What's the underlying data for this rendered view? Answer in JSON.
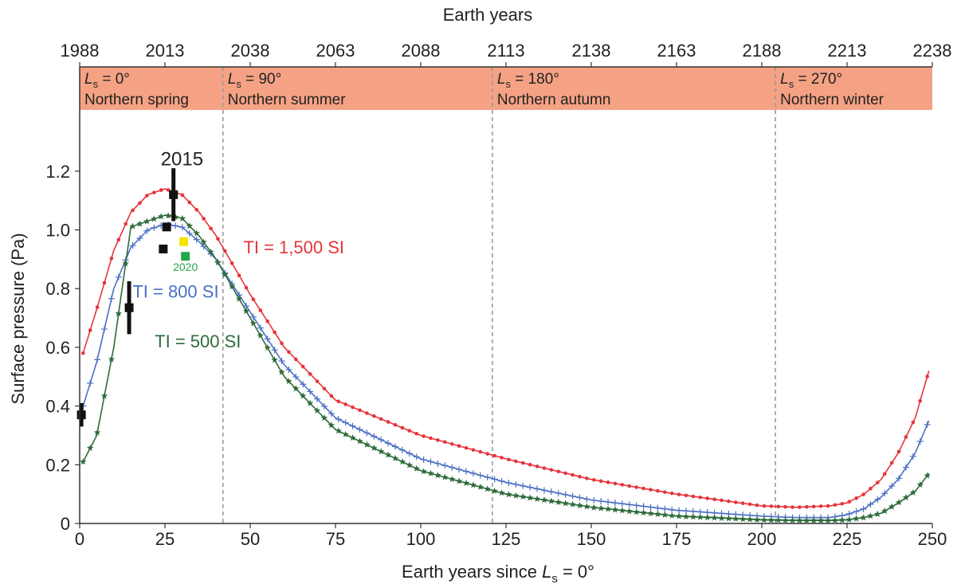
{
  "chart_data": {
    "type": "line",
    "top_axis_title": "Earth years",
    "top_ticks": [
      "1988",
      "2013",
      "2038",
      "2063",
      "2088",
      "2113",
      "2138",
      "2163",
      "2188",
      "2213",
      "2238"
    ],
    "xlabel_main": "Earth years since ",
    "xlabel_L": "L",
    "xlabel_sub": "s",
    "xlabel_tail": " = 0°",
    "ylabel": "Surface pressure (Pa)",
    "xlim": [
      0,
      250
    ],
    "ylim": [
      0,
      1.3
    ],
    "x_ticks": [
      0,
      25,
      50,
      75,
      100,
      125,
      150,
      175,
      200,
      225,
      250
    ],
    "y_ticks": [
      "0",
      "0.2",
      "0.4",
      "0.6",
      "0.8",
      "1.0",
      "1.2"
    ],
    "seasons": [
      {
        "ls": " = 0°",
        "name": "Northern spring",
        "x_start": 0
      },
      {
        "ls": " = 90°",
        "name": "Northern summer",
        "x_start": 42
      },
      {
        "ls": " = 180°",
        "name": "Northern autumn",
        "x_start": 121
      },
      {
        "ls": " = 270°",
        "name": "Northern winter",
        "x_start": 204
      }
    ],
    "season_color": "#f5a284",
    "series": [
      {
        "name": "TI = 1,500 SI",
        "color": "#e8333a",
        "marker": "dot",
        "x": [
          1,
          5,
          10,
          15,
          20,
          25,
          30,
          35,
          40,
          50,
          60,
          75,
          100,
          125,
          150,
          175,
          200,
          210,
          220,
          225,
          230,
          235,
          240,
          245,
          249
        ],
        "y": [
          0.58,
          0.73,
          0.93,
          1.06,
          1.12,
          1.14,
          1.12,
          1.06,
          0.98,
          0.78,
          0.6,
          0.42,
          0.3,
          0.22,
          0.15,
          0.1,
          0.06,
          0.055,
          0.06,
          0.07,
          0.1,
          0.15,
          0.24,
          0.36,
          0.52
        ]
      },
      {
        "name": "TI = 800 SI",
        "color": "#4a6fc4",
        "marker": "plus",
        "x": [
          1,
          5,
          10,
          15,
          20,
          25,
          30,
          35,
          40,
          50,
          60,
          75,
          100,
          125,
          150,
          175,
          200,
          210,
          220,
          225,
          230,
          235,
          240,
          245,
          249
        ],
        "y": [
          0.4,
          0.55,
          0.8,
          0.94,
          1.0,
          1.02,
          1.01,
          0.96,
          0.9,
          0.72,
          0.54,
          0.36,
          0.22,
          0.14,
          0.08,
          0.045,
          0.025,
          0.02,
          0.02,
          0.03,
          0.05,
          0.09,
          0.15,
          0.24,
          0.35
        ]
      },
      {
        "name": "TI = 500 SI",
        "color": "#2e6b3a",
        "marker": "star",
        "x": [
          1,
          5,
          10,
          15,
          20,
          25,
          30,
          35,
          40,
          50,
          60,
          75,
          100,
          125,
          150,
          175,
          200,
          210,
          220,
          225,
          230,
          235,
          240,
          245,
          249
        ],
        "y": [
          0.21,
          0.3,
          0.6,
          1.01,
          1.03,
          1.05,
          1.04,
          0.98,
          0.9,
          0.7,
          0.5,
          0.32,
          0.18,
          0.1,
          0.055,
          0.025,
          0.012,
          0.01,
          0.01,
          0.012,
          0.02,
          0.035,
          0.07,
          0.11,
          0.17
        ]
      }
    ],
    "observations": [
      {
        "x": 0.5,
        "y": 0.37,
        "err": 0.04,
        "color": "#111111"
      },
      {
        "x": 14.5,
        "y": 0.735,
        "err": 0.09,
        "color": "#111111"
      },
      {
        "x": 24.5,
        "y": 0.935,
        "err": 0.01,
        "color": "#111111"
      },
      {
        "x": 25.5,
        "y": 1.01,
        "err": 0.01,
        "color": "#111111"
      },
      {
        "x": 27.5,
        "y": 1.12,
        "err": 0.09,
        "color": "#111111"
      },
      {
        "x": 30.5,
        "y": 0.96,
        "err": 0,
        "color": "#f5e400"
      },
      {
        "x": 31,
        "y": 0.91,
        "err": 0,
        "color": "#22a84a"
      }
    ],
    "annotations": [
      {
        "text": "2015",
        "x": 30,
        "y": 1.22,
        "color": "#222222",
        "size": 24
      },
      {
        "text": "2020",
        "x": 31,
        "y": 0.86,
        "color": "#22a84a",
        "size": 14
      },
      {
        "text": "TI = 1,500 SI",
        "x": 48,
        "y": 0.92,
        "color": "#e8333a",
        "size": 22
      },
      {
        "text": "TI = 800 SI",
        "x": 15.5,
        "y": 0.77,
        "color": "#4a6fc4",
        "size": 22
      },
      {
        "text": "TI = 500 SI",
        "x": 22,
        "y": 0.6,
        "color": "#2e6b3a",
        "size": 22
      }
    ]
  }
}
